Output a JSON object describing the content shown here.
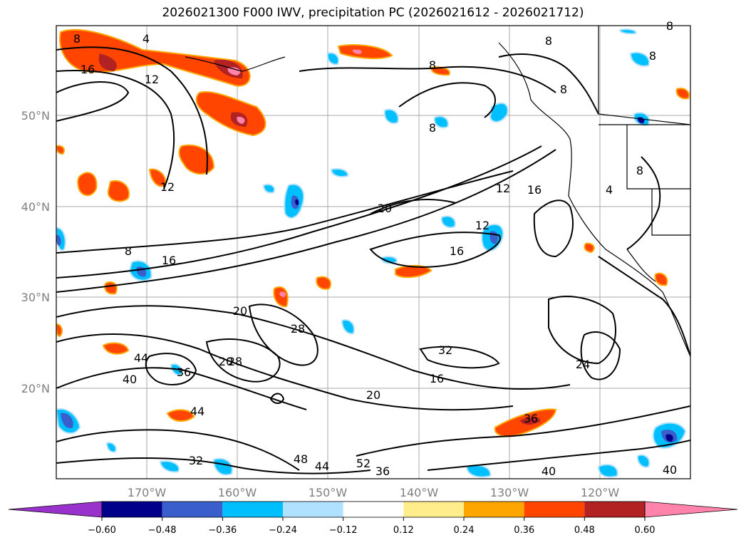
{
  "title": "2026021300 F000 IWV, precipitation PC (2026021612 - 2026021712)",
  "map": {
    "lat_labels": [
      "50°N",
      "40°N",
      "30°N",
      "20°N"
    ],
    "lon_labels": [
      "170°W",
      "160°W",
      "150°W",
      "140°W",
      "130°W",
      "120°W"
    ],
    "contour_labels": [
      "8",
      "4",
      "16",
      "12",
      "8",
      "12",
      "20",
      "12",
      "12",
      "16",
      "16",
      "8",
      "16",
      "20",
      "28",
      "20",
      "36",
      "44",
      "40",
      "44",
      "32",
      "16",
      "20",
      "24",
      "28",
      "36",
      "32",
      "48",
      "44",
      "52",
      "36",
      "40",
      "40",
      "8",
      "8",
      "4",
      "8",
      "8",
      "8",
      "8"
    ]
  },
  "colorbar": {
    "ticks": [
      "−0.60",
      "−0.48",
      "−0.36",
      "−0.24",
      "−0.12",
      "0.12",
      "0.24",
      "0.36",
      "0.48",
      "0.60"
    ],
    "colors": [
      "#9932cc",
      "#00008b",
      "#3a5fcd",
      "#00bfff",
      "#b0e2ff",
      "#ffffff",
      "#ffec8b",
      "#ffa500",
      "#ff4500",
      "#b22222",
      "#ff83aa"
    ]
  }
}
